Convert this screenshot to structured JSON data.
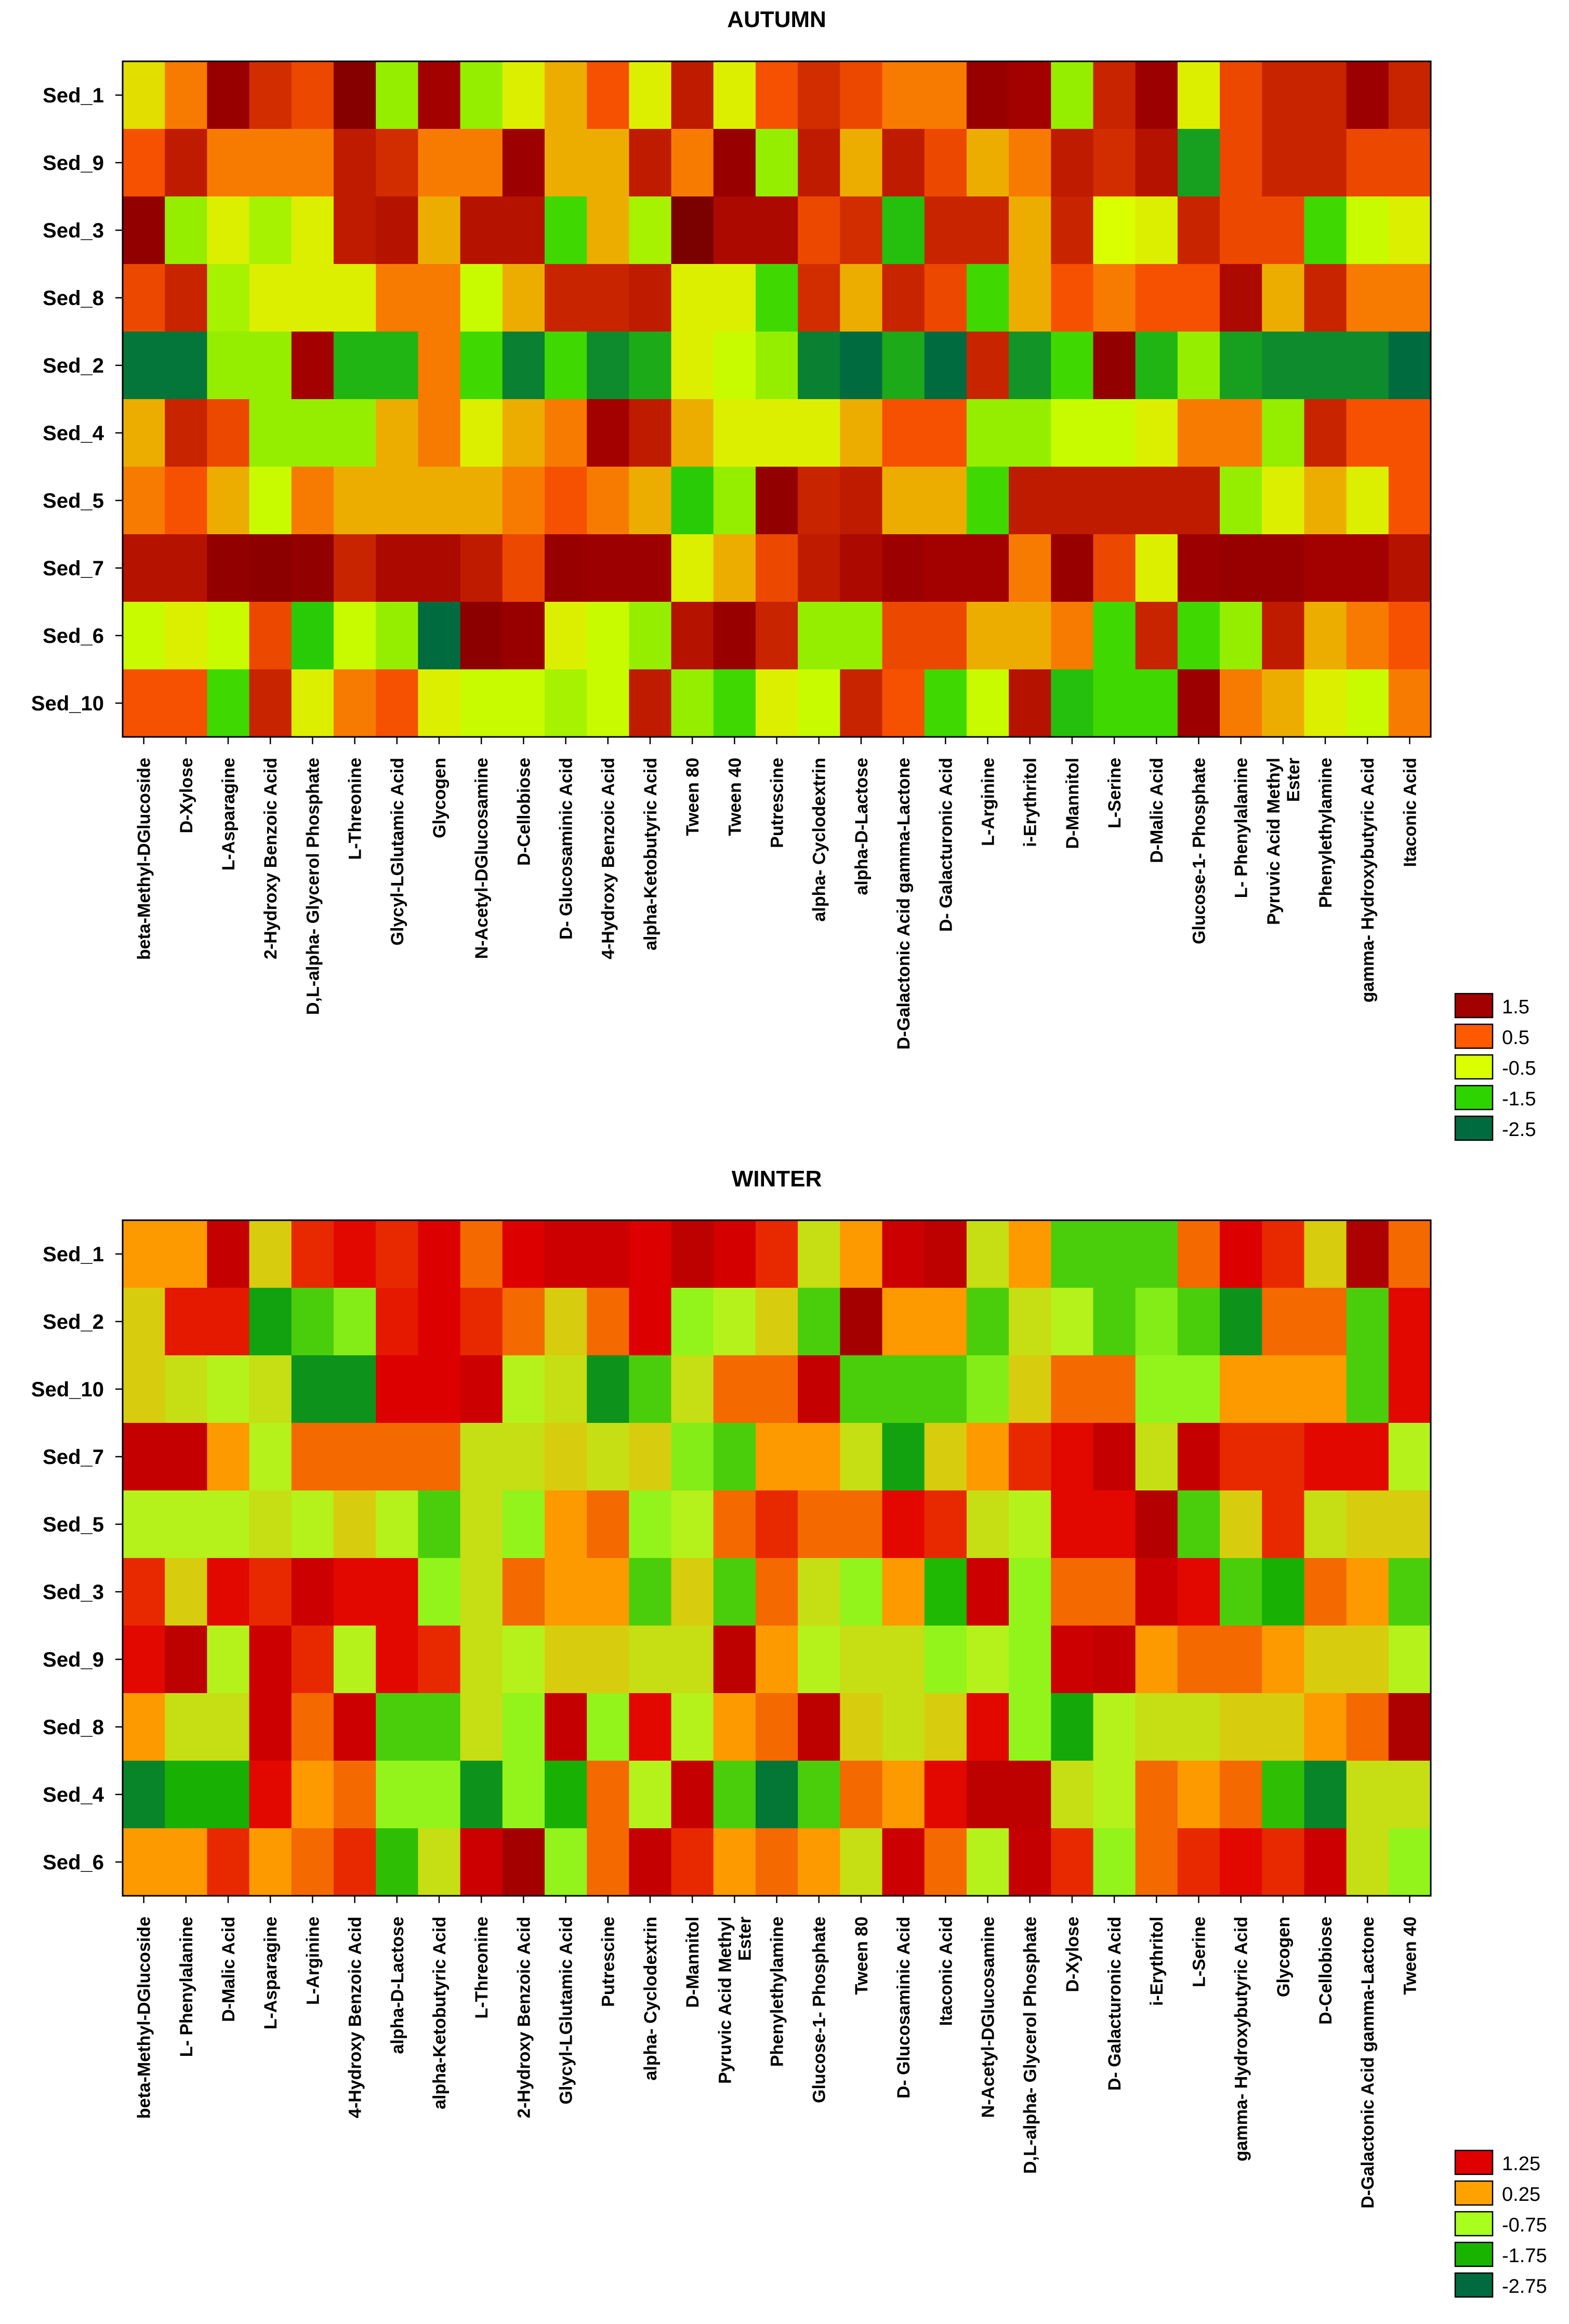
{
  "chart_data": [
    {
      "type": "heatmap",
      "title": "AUTUMN",
      "rows": [
        "Sed_1",
        "Sed_9",
        "Sed_3",
        "Sed_8",
        "Sed_2",
        "Sed_4",
        "Sed_5",
        "Sed_7",
        "Sed_6",
        "Sed_10"
      ],
      "columns": [
        "beta-Methyl-DGlucoside",
        "D-Xylose",
        "L-Asparagine",
        "2-Hydroxy Benzoic Acid",
        "D,L-alpha- Glycerol Phosphate",
        "L-Threonine",
        "Glycyl-LGlutamic Acid",
        "Glycogen",
        "N-Acetyl-DGlucosamine",
        "D-Cellobiose",
        "D- Glucosaminic Acid",
        "4-Hydroxy Benzoic Acid",
        "alpha-Ketobutyric Acid",
        "Tween 80",
        "Tween 40",
        "Putrescine",
        "alpha- Cyclodextrin",
        "alpha-D-Lactose",
        "D-Galactonic Acid gamma-Lactone",
        "D- Galacturonic Acid",
        "L-Arginine",
        "i-Erythritol",
        "D-Mannitol",
        "L-Serine",
        "D-Malic Acid",
        "Glucose-1- Phosphate",
        "L- Phenylalanine",
        "Pyruvic Acid Methyl\nEster",
        "Phenylethylamine",
        "gamma- Hydroxybutyric Acid",
        "Itaconic Acid"
      ],
      "values": [
        [
          -0.3,
          0.3,
          1.7,
          1.0,
          0.7,
          2.0,
          -0.9,
          1.5,
          -0.9,
          -0.4,
          0.0,
          0.6,
          -0.4,
          1.2,
          -0.4,
          0.6,
          1.0,
          0.7,
          0.3,
          0.3,
          1.7,
          1.5,
          -0.9,
          1.1,
          1.6,
          -0.4,
          0.7,
          1.1,
          1.1,
          1.6,
          1.1
        ],
        [
          0.6,
          1.2,
          0.3,
          0.3,
          0.3,
          1.2,
          1.0,
          0.3,
          0.3,
          1.6,
          0.0,
          0.0,
          1.2,
          0.3,
          1.7,
          -0.9,
          1.2,
          0.0,
          1.2,
          0.7,
          0.0,
          0.3,
          1.2,
          1.0,
          1.3,
          -2.0,
          0.7,
          1.1,
          1.1,
          0.7,
          0.7
        ],
        [
          1.8,
          -0.9,
          -0.4,
          -0.8,
          -0.4,
          1.2,
          1.3,
          0.0,
          1.3,
          1.3,
          -1.4,
          0.0,
          -0.8,
          2.2,
          1.4,
          1.4,
          0.7,
          1.0,
          -1.7,
          1.1,
          1.1,
          0.0,
          1.1,
          -0.5,
          -0.4,
          1.1,
          0.7,
          0.7,
          -1.4,
          -0.6,
          -0.4
        ],
        [
          0.7,
          1.1,
          -0.8,
          -0.4,
          -0.4,
          -0.4,
          0.3,
          0.3,
          -0.6,
          0.0,
          1.1,
          1.1,
          1.2,
          -0.4,
          -0.4,
          -1.4,
          1.0,
          0.0,
          1.1,
          0.7,
          -1.4,
          0.0,
          0.6,
          0.3,
          0.6,
          0.6,
          1.4,
          0.0,
          1.1,
          0.3,
          0.3
        ],
        [
          -2.4,
          -2.4,
          -0.9,
          -0.9,
          1.5,
          -1.8,
          -1.8,
          0.3,
          -1.4,
          -2.3,
          -1.4,
          -2.2,
          -1.9,
          -0.4,
          -0.6,
          -0.9,
          -2.3,
          -2.5,
          -1.9,
          -2.5,
          1.1,
          -2.1,
          -1.4,
          1.8,
          -1.8,
          -0.9,
          -2.0,
          -2.2,
          -2.2,
          -2.2,
          -2.9
        ],
        [
          0.0,
          1.1,
          0.7,
          -0.9,
          -0.9,
          -0.9,
          0.0,
          0.3,
          -0.4,
          0.0,
          0.3,
          1.5,
          1.2,
          0.0,
          -0.4,
          -0.4,
          -0.4,
          0.0,
          0.6,
          0.6,
          -0.9,
          -0.9,
          -0.6,
          -0.6,
          -0.4,
          0.3,
          0.3,
          -0.9,
          1.1,
          0.6,
          0.6
        ],
        [
          0.3,
          0.6,
          0.0,
          -0.6,
          0.3,
          0.0,
          0.0,
          0.0,
          0.0,
          0.3,
          0.6,
          0.3,
          0.0,
          -1.6,
          -0.9,
          1.8,
          1.1,
          1.2,
          0.0,
          0.0,
          -1.4,
          1.2,
          1.2,
          1.2,
          1.2,
          1.2,
          -0.9,
          -0.4,
          0.0,
          -0.4,
          0.6
        ],
        [
          1.3,
          1.3,
          1.8,
          1.9,
          1.8,
          1.1,
          1.4,
          1.4,
          1.2,
          0.7,
          1.7,
          1.6,
          1.6,
          -0.4,
          0.0,
          0.7,
          1.2,
          1.4,
          1.6,
          1.5,
          1.5,
          0.3,
          1.7,
          0.7,
          -0.4,
          1.6,
          1.7,
          1.7,
          1.5,
          1.5,
          1.3
        ],
        [
          -0.6,
          -0.4,
          -0.6,
          0.7,
          -1.6,
          -0.6,
          -0.9,
          -2.5,
          1.9,
          1.7,
          -0.4,
          -0.6,
          -0.9,
          1.3,
          1.7,
          1.1,
          -0.9,
          -0.9,
          0.7,
          0.7,
          0.0,
          0.0,
          0.3,
          -1.4,
          1.1,
          -1.4,
          -0.9,
          1.2,
          0.0,
          0.3,
          0.6
        ],
        [
          0.6,
          0.6,
          -1.4,
          1.1,
          -0.4,
          0.3,
          0.6,
          -0.4,
          -0.6,
          -0.6,
          -0.8,
          -0.6,
          1.2,
          -0.9,
          -1.4,
          -0.4,
          -0.6,
          1.1,
          0.6,
          -1.4,
          -0.6,
          1.3,
          -1.7,
          -1.4,
          -1.4,
          1.6,
          0.3,
          0.0,
          -0.4,
          -0.6,
          0.3
        ]
      ],
      "legend": {
        "values": [
          1.5,
          0.5,
          -0.5,
          -1.5,
          -2.5
        ],
        "labels": [
          "1.5",
          "0.5",
          "-0.5",
          "-1.5",
          "-2.5"
        ],
        "placement": "right"
      },
      "colors": [
        "#a30000",
        "#ff5a00",
        "#d9ff00",
        "#2ed400",
        "#006b3f"
      ]
    },
    {
      "type": "heatmap",
      "title": "WINTER",
      "rows": [
        "Sed_1",
        "Sed_2",
        "Sed_10",
        "Sed_7",
        "Sed_5",
        "Sed_3",
        "Sed_9",
        "Sed_8",
        "Sed_4",
        "Sed_6"
      ],
      "columns": [
        "beta-Methyl-DGlucoside",
        "L- Phenylalanine",
        "D-Malic Acid",
        "L-Asparagine",
        "L-Arginine",
        "4-Hydroxy Benzoic Acid",
        "alpha-D-Lactose",
        "alpha-Ketobutyric Acid",
        "L-Threonine",
        "2-Hydroxy Benzoic Acid",
        "Glycyl-LGlutamic Acid",
        "Putrescine",
        "alpha- Cyclodextrin",
        "D-Mannitol",
        "Pyruvic Acid Methyl\nEster",
        "Phenylethylamine",
        "Glucose-1- Phosphate",
        "Tween 80",
        "D- Glucosaminic Acid",
        "Itaconic Acid",
        "N-Acetyl-DGlucosamine",
        "D,L-alpha- Glycerol Phosphate",
        "D-Xylose",
        "D- Galacturonic Acid",
        "i-Erythritol",
        "L-Serine",
        "gamma- Hydroxybutyric Acid",
        "Glycogen",
        "D-Cellobiose",
        "D-Galactonic Acid gamma-Lactone",
        "Tween 40"
      ],
      "values": [
        [
          0.3,
          0.3,
          1.6,
          -0.2,
          1.0,
          1.2,
          1.0,
          1.3,
          0.6,
          1.3,
          1.5,
          1.5,
          1.3,
          1.7,
          1.4,
          1.0,
          -0.4,
          0.3,
          1.5,
          1.7,
          -0.4,
          0.3,
          -1.4,
          -1.4,
          -1.4,
          0.6,
          1.3,
          1.0,
          -0.2,
          1.9,
          0.6
        ],
        [
          -0.2,
          1.1,
          1.1,
          -2.0,
          -1.4,
          -1.0,
          1.1,
          1.3,
          1.0,
          0.6,
          -0.2,
          0.6,
          1.3,
          -0.9,
          -0.6,
          -0.2,
          -1.4,
          2.0,
          0.3,
          0.3,
          -1.4,
          -0.4,
          -0.6,
          -1.4,
          -1.0,
          -1.4,
          -2.2,
          0.6,
          0.6,
          -1.4,
          1.2
        ],
        [
          -0.2,
          -0.4,
          -0.6,
          -0.4,
          -2.2,
          -2.2,
          1.3,
          1.3,
          1.5,
          -0.6,
          -0.4,
          -2.2,
          -1.4,
          -0.4,
          0.6,
          0.6,
          1.6,
          -1.4,
          -1.4,
          -1.4,
          -1.0,
          -0.2,
          0.6,
          0.6,
          -0.9,
          -0.9,
          0.3,
          0.3,
          0.3,
          -1.4,
          1.2
        ],
        [
          1.6,
          1.6,
          0.3,
          -0.6,
          0.6,
          0.6,
          0.6,
          0.6,
          -0.4,
          -0.4,
          -0.2,
          -0.4,
          -0.2,
          -1.0,
          -1.4,
          0.3,
          0.3,
          -0.4,
          -2.0,
          -0.2,
          0.3,
          1.0,
          1.2,
          1.6,
          -0.4,
          1.6,
          1.0,
          1.0,
          1.2,
          1.2,
          -0.6
        ],
        [
          -0.6,
          -0.6,
          -0.6,
          -0.4,
          -0.6,
          -0.2,
          -0.6,
          -1.4,
          -0.4,
          -0.9,
          0.3,
          0.6,
          -0.9,
          -0.6,
          0.6,
          1.0,
          0.6,
          0.6,
          1.2,
          1.0,
          -0.4,
          -0.6,
          1.2,
          1.2,
          1.8,
          -1.4,
          -0.2,
          1.0,
          -0.4,
          -0.2,
          -0.2
        ],
        [
          1.0,
          -0.2,
          1.2,
          1.0,
          1.5,
          1.2,
          1.2,
          -0.9,
          -0.4,
          0.6,
          0.3,
          0.3,
          -1.4,
          -0.2,
          -1.4,
          0.6,
          -0.4,
          -0.9,
          0.3,
          -1.7,
          1.5,
          -0.9,
          0.6,
          0.6,
          1.5,
          1.2,
          -1.4,
          -1.8,
          0.6,
          0.3,
          -1.4
        ],
        [
          1.2,
          1.7,
          -0.6,
          1.5,
          1.0,
          -0.6,
          1.2,
          1.0,
          -0.4,
          -0.6,
          -0.2,
          -0.2,
          -0.4,
          -0.4,
          1.7,
          0.3,
          -0.6,
          -0.4,
          -0.4,
          -0.9,
          -0.6,
          -0.9,
          1.5,
          1.6,
          0.3,
          0.6,
          0.6,
          0.3,
          -0.2,
          -0.2,
          -0.6
        ],
        [
          0.3,
          -0.4,
          -0.4,
          1.5,
          0.6,
          1.5,
          -1.4,
          -1.4,
          -0.4,
          -0.9,
          1.6,
          -0.9,
          1.2,
          -0.6,
          0.3,
          0.6,
          1.7,
          -0.2,
          -0.4,
          -0.2,
          1.2,
          -0.9,
          -1.9,
          -0.6,
          -0.4,
          -0.4,
          -0.2,
          -0.2,
          0.3,
          0.6,
          1.9
        ],
        [
          -2.4,
          -1.8,
          -1.8,
          1.2,
          0.3,
          0.6,
          -0.9,
          -0.9,
          -2.2,
          -0.9,
          -1.8,
          0.6,
          -0.6,
          1.6,
          -1.4,
          -2.6,
          -1.4,
          0.6,
          0.3,
          1.2,
          1.7,
          1.7,
          -0.4,
          -0.6,
          0.6,
          0.3,
          0.6,
          -1.6,
          -2.4,
          -0.4,
          -0.4
        ],
        [
          0.3,
          0.3,
          1.0,
          0.3,
          0.6,
          1.0,
          -1.6,
          -0.4,
          1.5,
          2.0,
          -0.9,
          0.6,
          1.6,
          1.0,
          0.3,
          0.6,
          0.3,
          -0.4,
          1.5,
          0.6,
          -0.6,
          1.6,
          1.0,
          -0.9,
          0.6,
          1.0,
          1.2,
          1.0,
          1.5,
          -0.4,
          -0.9
        ]
      ],
      "legend": {
        "values": [
          1.25,
          0.25,
          -0.75,
          -1.75,
          -2.75
        ],
        "labels": [
          "1.25",
          "0.25",
          "-0.75",
          "-1.75",
          "-2.75"
        ],
        "placement": "right"
      },
      "colors": [
        "#e00000",
        "#ffa200",
        "#a8ff1e",
        "#18b400",
        "#006b3f"
      ]
    }
  ]
}
